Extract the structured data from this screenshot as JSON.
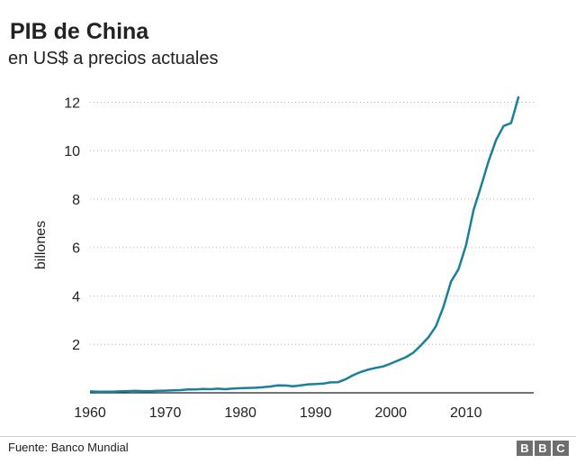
{
  "header": {
    "title": "PIB de China",
    "subtitle": "en US$ a precios actuales"
  },
  "footer": {
    "source": "Fuente: Banco Mundial",
    "logo_letters": [
      "B",
      "B",
      "C"
    ]
  },
  "chart_data": {
    "type": "line",
    "ylabel": "billones",
    "xlabel": "",
    "xlim": [
      1960,
      2019
    ],
    "ylim": [
      0,
      12.5
    ],
    "x_ticks": [
      1960,
      1970,
      1980,
      1990,
      2000,
      2010
    ],
    "y_ticks": [
      2,
      4,
      6,
      8,
      10,
      12
    ],
    "grid": "horizontal dotted",
    "line_color": "#1a7f9a",
    "series": [
      {
        "x": [
          1960,
          1961,
          1962,
          1963,
          1964,
          1965,
          1966,
          1967,
          1968,
          1969,
          1970,
          1971,
          1972,
          1973,
          1974,
          1975,
          1976,
          1977,
          1978,
          1979,
          1980,
          1981,
          1982,
          1983,
          1984,
          1985,
          1986,
          1987,
          1988,
          1989,
          1990,
          1991,
          1992,
          1993,
          1994,
          1995,
          1996,
          1997,
          1998,
          1999,
          2000,
          2001,
          2002,
          2003,
          2004,
          2005,
          2006,
          2007,
          2008,
          2009,
          2010,
          2011,
          2012,
          2013,
          2014,
          2015,
          2016,
          2017
        ],
        "values": [
          0.06,
          0.05,
          0.05,
          0.05,
          0.06,
          0.07,
          0.08,
          0.07,
          0.07,
          0.08,
          0.09,
          0.1,
          0.11,
          0.14,
          0.14,
          0.16,
          0.15,
          0.17,
          0.15,
          0.18,
          0.19,
          0.2,
          0.21,
          0.23,
          0.26,
          0.31,
          0.3,
          0.27,
          0.31,
          0.35,
          0.36,
          0.38,
          0.43,
          0.44,
          0.56,
          0.73,
          0.86,
          0.96,
          1.03,
          1.09,
          1.21,
          1.34,
          1.47,
          1.66,
          1.96,
          2.29,
          2.75,
          3.55,
          4.59,
          5.1,
          6.09,
          7.55,
          8.53,
          9.57,
          10.44,
          11.02,
          11.14,
          12.24
        ]
      }
    ]
  }
}
